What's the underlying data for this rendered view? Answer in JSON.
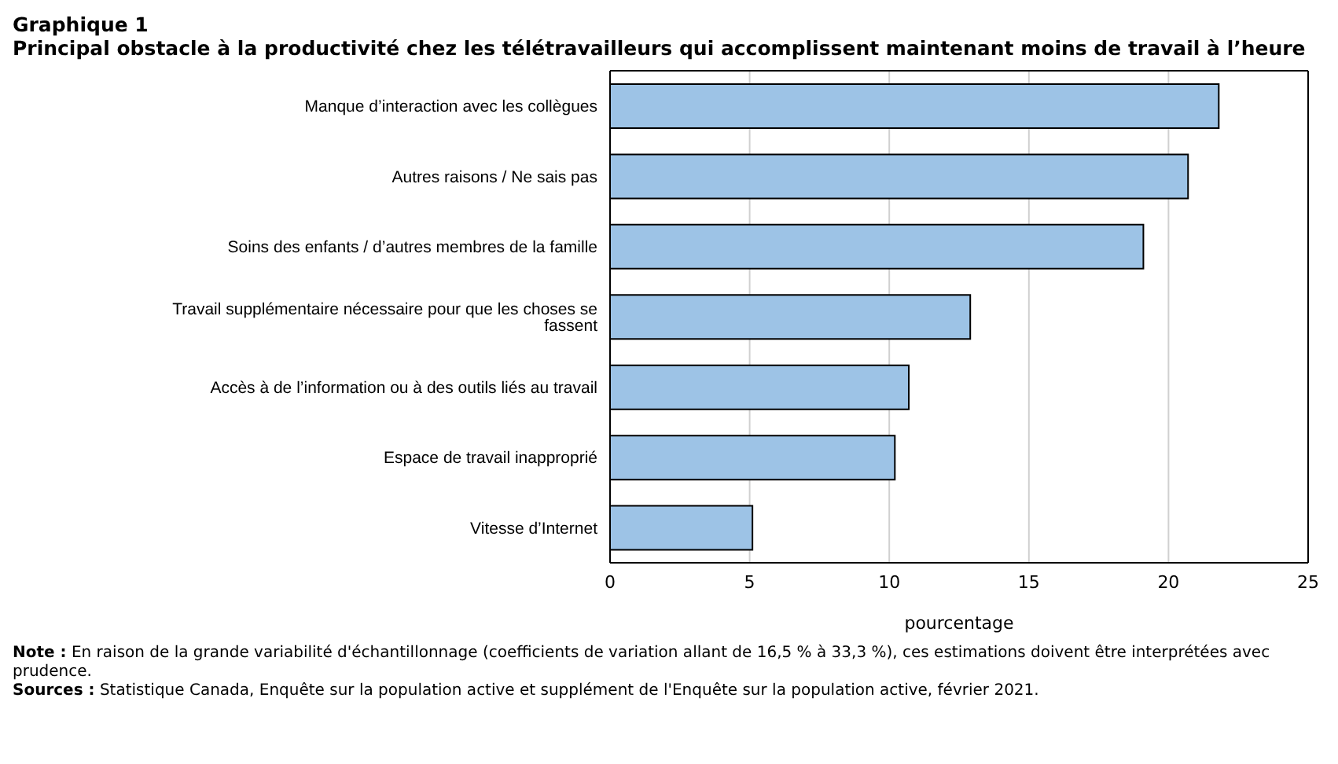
{
  "chart_data": {
    "type": "bar",
    "orientation": "horizontal",
    "title": "Graphique 1",
    "subtitle": "Principal obstacle à la productivité chez les télétravailleurs qui accomplissent maintenant moins de travail à l’heure",
    "categories": [
      "Manque d’interaction avec les collègues",
      "Autres raisons / Ne sais pas",
      "Soins des enfants / d’autres membres de la famille",
      "Travail supplémentaire nécessaire pour que les choses se fassent",
      "Accès à de l’information ou à des outils liés au travail",
      "Espace de travail inapproprié",
      "Vitesse d’Internet"
    ],
    "values": [
      21.8,
      20.7,
      19.1,
      12.9,
      10.7,
      10.2,
      5.1
    ],
    "color": "#9dc3e6",
    "xlabel": "pourcentage",
    "xlim": [
      0,
      25
    ],
    "xticks": [
      0,
      5,
      10,
      15,
      20,
      25
    ],
    "grid": "x",
    "annotations": [
      "Note : En raison de la grande variabilité d'échantillonnage (coefficients de variation allant de 16,5 % à 33,3 %), ces estimations doivent être interprétées avec prudence.",
      "Sources : Statistique Canada, Enquête sur la population active et supplément de l'Enquête sur la population active, février 2021."
    ]
  }
}
